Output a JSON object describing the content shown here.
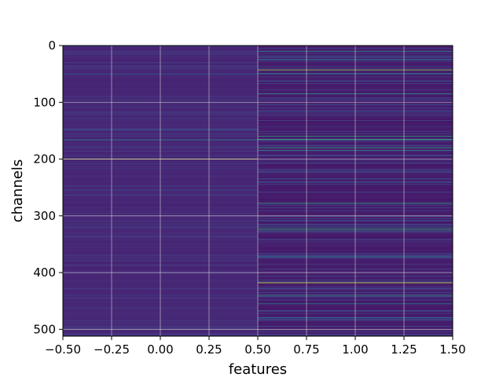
{
  "chart_data": {
    "type": "heatmap",
    "title": "",
    "xlabel": "features",
    "ylabel": "channels",
    "xlim": [
      -0.5,
      1.5
    ],
    "ylim": [
      512,
      0
    ],
    "x_ticks": [
      -0.5,
      -0.25,
      0.0,
      0.25,
      0.5,
      0.75,
      1.0,
      1.25,
      1.5
    ],
    "x_tick_labels": [
      "−0.50",
      "−0.25",
      "0.00",
      "0.25",
      "0.50",
      "0.75",
      "1.00",
      "1.25",
      "1.50"
    ],
    "y_ticks": [
      0,
      100,
      200,
      300,
      400,
      500
    ],
    "y_tick_labels": [
      "0",
      "100",
      "200",
      "300",
      "400",
      "500"
    ],
    "grid": true,
    "colormap": "viridis",
    "columns": [
      0,
      1
    ],
    "rows": 512,
    "column_baseline": [
      0.1,
      0.06
    ],
    "highlighted_rows": {
      "column_0": [
        {
          "row": 50,
          "value": 0.35
        },
        {
          "row": 148,
          "value": 0.3
        },
        {
          "row": 166,
          "value": 0.45
        },
        {
          "row": 200,
          "value": 0.95
        }
      ],
      "column_1": [
        {
          "row": 10,
          "value": 0.55
        },
        {
          "row": 25,
          "value": 0.4
        },
        {
          "row": 43,
          "value": 0.85
        },
        {
          "row": 50,
          "value": 0.45
        },
        {
          "row": 85,
          "value": 0.55
        },
        {
          "row": 160,
          "value": 0.6
        },
        {
          "row": 165,
          "value": 0.7
        },
        {
          "row": 180,
          "value": 0.65
        },
        {
          "row": 185,
          "value": 0.55
        },
        {
          "row": 235,
          "value": 0.3
        },
        {
          "row": 278,
          "value": 0.6
        },
        {
          "row": 322,
          "value": 0.55
        },
        {
          "row": 325,
          "value": 0.65
        },
        {
          "row": 372,
          "value": 0.4
        },
        {
          "row": 418,
          "value": 0.95
        },
        {
          "row": 440,
          "value": 0.6
        },
        {
          "row": 455,
          "value": 0.45
        },
        {
          "row": 480,
          "value": 0.4
        },
        {
          "row": 495,
          "value": 0.3
        }
      ]
    },
    "gridline_color": "#d8d8d8"
  }
}
